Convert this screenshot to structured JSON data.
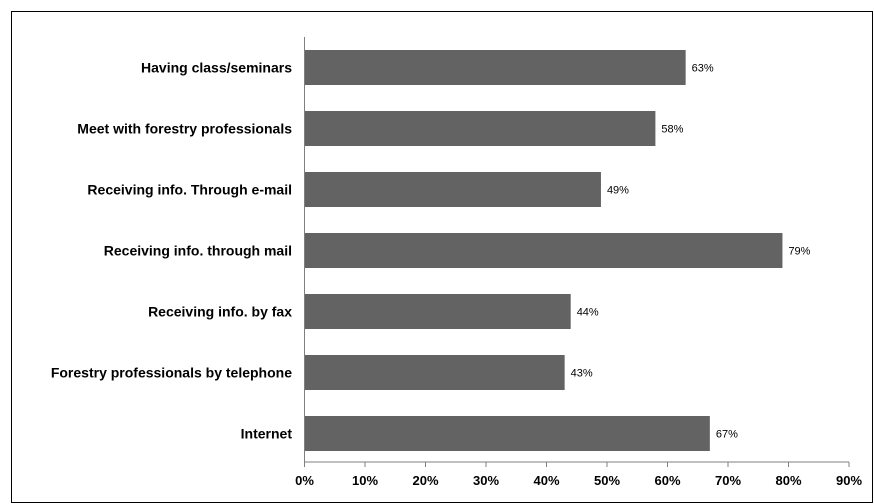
{
  "chart_data": {
    "type": "bar",
    "orientation": "horizontal",
    "title": "",
    "xlabel": "",
    "ylabel": "",
    "categories": [
      "Having class/seminars",
      "Meet with forestry professionals",
      "Receiving info. Through e-mail",
      "Receiving info. through mail",
      "Receiving info. by fax",
      "Forestry professionals by telephone",
      "Internet"
    ],
    "values": [
      63,
      58,
      49,
      79,
      44,
      43,
      67
    ],
    "value_labels": [
      "63%",
      "58%",
      "49%",
      "79%",
      "44%",
      "43%",
      "67%"
    ],
    "xlim": [
      0,
      90
    ],
    "x_ticks": [
      "0%",
      "10%",
      "20%",
      "30%",
      "40%",
      "50%",
      "60%",
      "70%",
      "80%",
      "90%"
    ],
    "grid": false,
    "legend": "none",
    "bar_color": "#636363"
  }
}
